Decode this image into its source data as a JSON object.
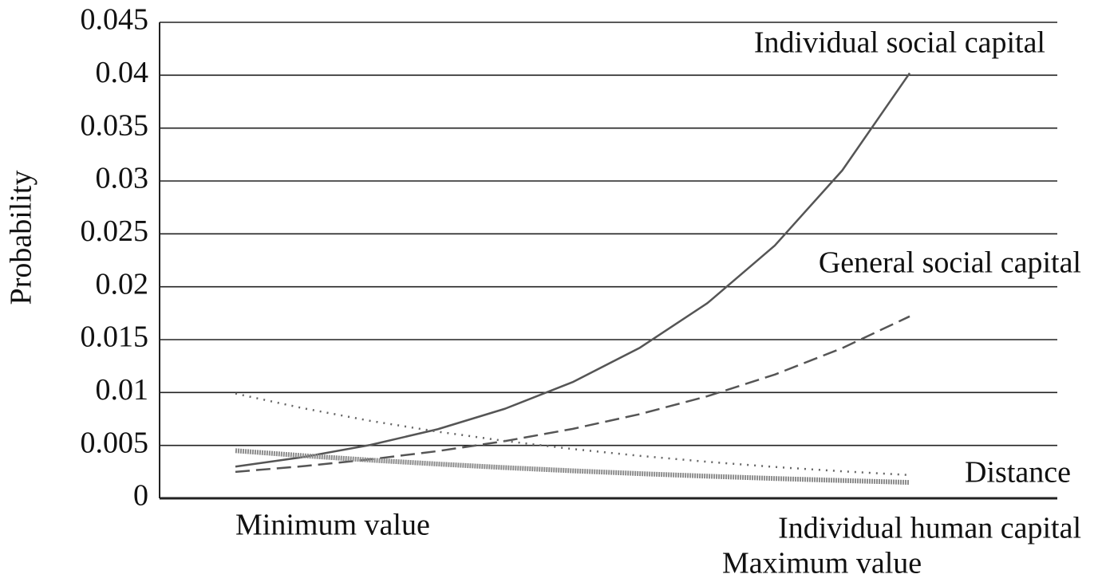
{
  "chart_data": {
    "type": "line",
    "y_label": "Probability",
    "categories": [
      "Minimum value",
      null,
      null,
      null,
      null,
      null,
      null,
      null,
      null,
      null,
      "Maximum value"
    ],
    "series": [
      {
        "name": "Individual social capital",
        "color": "#555555",
        "style": "solid",
        "values": [
          0.003,
          0.00389,
          0.00504,
          0.00653,
          0.00847,
          0.01098,
          0.01424,
          0.01845,
          0.0239,
          0.031,
          0.0402
        ]
      },
      {
        "name": "General social capital",
        "color": "#555555",
        "style": "dashed",
        "values": [
          0.0025,
          0.00303,
          0.00368,
          0.00446,
          0.00541,
          0.00656,
          0.00796,
          0.00965,
          0.0117,
          0.0142,
          0.0172
        ]
      },
      {
        "name": "Distance",
        "color": "#8c8c8c",
        "style": "hatched",
        "values": [
          0.0045,
          0.00403,
          0.00361,
          0.00324,
          0.0029,
          0.0026,
          0.00233,
          0.00209,
          0.00187,
          0.00168,
          0.0015
        ]
      },
      {
        "name": "Individual human capital",
        "color": "#666666",
        "style": "dotted",
        "values": [
          0.0099,
          0.00852,
          0.00732,
          0.0063,
          0.00542,
          0.00466,
          0.00401,
          0.00345,
          0.00296,
          0.00255,
          0.0022
        ]
      }
    ],
    "ylim": [
      0,
      0.045
    ],
    "yticks": [
      0,
      0.005,
      0.01,
      0.015,
      0.02,
      0.025,
      0.03,
      0.035,
      0.04,
      0.045
    ],
    "grid": true
  }
}
